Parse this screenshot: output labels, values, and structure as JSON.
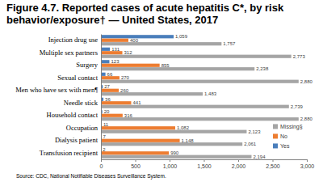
{
  "chart_data": {
    "type": "bar",
    "orientation": "horizontal",
    "title": "Figure 4.7. Reported cases of acute hepatitis C*, by risk behavior/exposure† — United States, 2017",
    "categories": [
      "Injection drug use",
      "Multiple sex partners",
      "Surgery",
      "Sexual contact",
      "Men who have sex with men¶",
      "Needle stick",
      "Household contact",
      "Occupation",
      "Dialysis patient",
      "Transfusion recipient"
    ],
    "series": [
      {
        "name": "Yes",
        "color": "#4a7ebb",
        "values": [
          1059,
          131,
          123,
          66,
          27,
          36,
          20,
          11,
          7,
          2
        ],
        "value_labels": [
          "1,059",
          "131",
          "123",
          "66",
          "27",
          "36",
          "20",
          "11",
          "7",
          "2"
        ]
      },
      {
        "name": "No",
        "color": "#ed7d31",
        "values": [
          400,
          312,
          855,
          270,
          260,
          441,
          316,
          1082,
          1148,
          990
        ],
        "value_labels": [
          "400",
          "312",
          "855",
          "270",
          "260",
          "441",
          "316",
          "1,082",
          "1,148",
          "990"
        ]
      },
      {
        "name": "Missing§",
        "color": "#a5a5a5",
        "values": [
          1757,
          2773,
          2238,
          2880,
          1483,
          2739,
          2880,
          2123,
          2061,
          2194
        ],
        "value_labels": [
          "1,757",
          "2,773",
          "2,238",
          "2,880",
          "1,483",
          "2,739",
          "2,880",
          "2,123",
          "2,061",
          "2,194"
        ]
      }
    ],
    "xlim": [
      0,
      3000
    ],
    "xticks": [
      {
        "value": 0,
        "label": "0"
      },
      {
        "value": 500,
        "label": "500"
      },
      {
        "value": 1000,
        "label": "1,000"
      },
      {
        "value": 1500,
        "label": "1,500"
      },
      {
        "value": 2000,
        "label": "2,000"
      },
      {
        "value": 2500,
        "label": "2,500"
      },
      {
        "value": 3000,
        "label": "3,000"
      }
    ],
    "grid": false,
    "data_labels": true,
    "legend": "lower right",
    "annotations": [
      "Source: CDC, National Notifiable Diseases Surveillance System."
    ]
  }
}
